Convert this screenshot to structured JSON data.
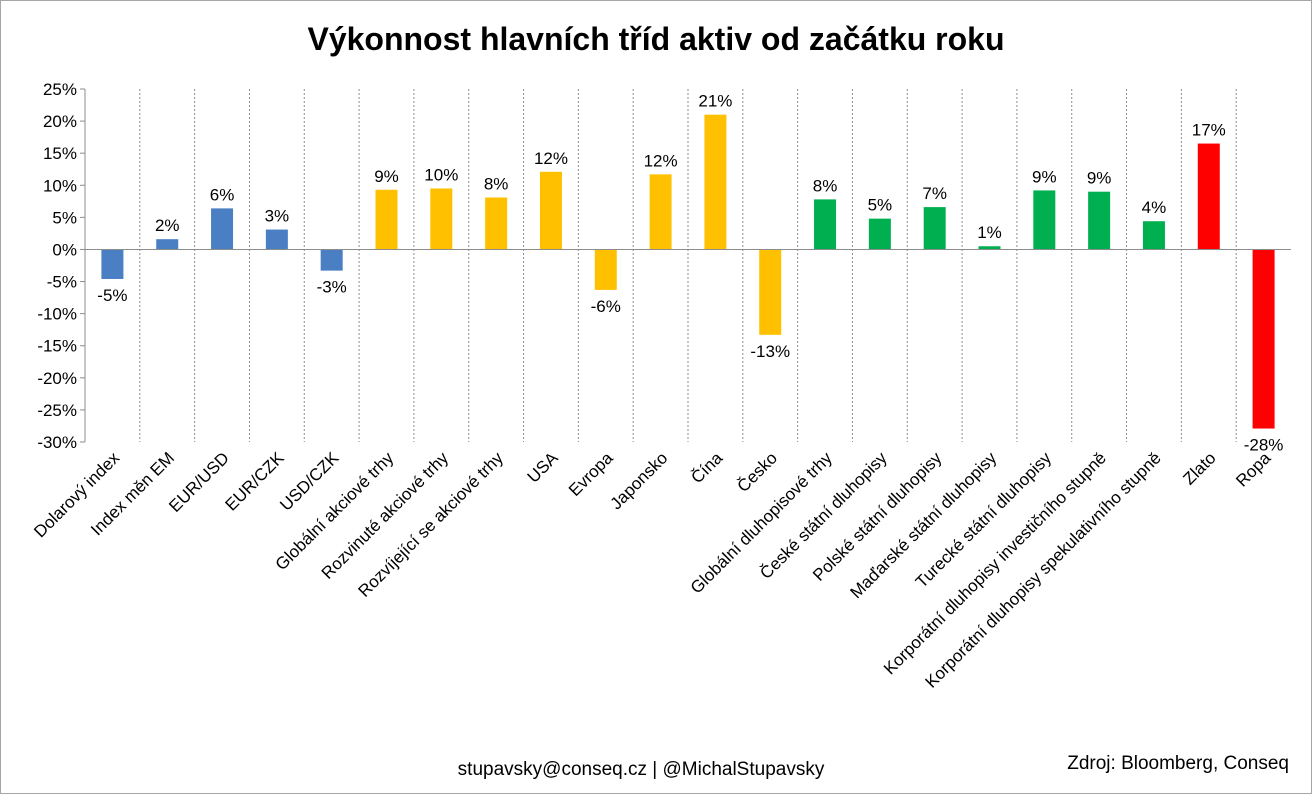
{
  "chart_data": {
    "type": "bar",
    "title": "Výkonnost hlavních tříd aktiv od začátku roku",
    "xlabel": "",
    "ylabel": "",
    "ylim": [
      -30,
      25
    ],
    "yticks": [
      "25%",
      "20%",
      "15%",
      "10%",
      "5%",
      "0%",
      "-5%",
      "-10%",
      "-15%",
      "-20%",
      "-25%",
      "-30%"
    ],
    "ytick_values": [
      25,
      20,
      15,
      10,
      5,
      0,
      -5,
      -10,
      -15,
      -20,
      -25,
      -30
    ],
    "grid": "vertical dashed category separators",
    "legend": "none",
    "categories": [
      "Dolarový index",
      "Index měn EM",
      "EUR/USD",
      "EUR/CZK",
      "USD/CZK",
      "Globální akciové trhy",
      "Rozvinuté akciové trhy",
      "Rozvíjející se akciové trhy",
      "USA",
      "Evropa",
      "Japonsko",
      "Čína",
      "Česko",
      "Globální dluhopisové trhy",
      "České státní dluhopisy",
      "Polské státní dluhopisy",
      "Maďarské státní dluhopisy",
      "Turecké státní dluhopisy",
      "Korporátní dluhopisy investičního stupně",
      "Korporátní dluhopisy spekulativního stupně",
      "Zlato",
      "Ropa"
    ],
    "values": [
      -4.6,
      1.6,
      6.4,
      3.1,
      -3.3,
      9.3,
      9.5,
      8.1,
      12.1,
      -6.3,
      11.7,
      21.0,
      -13.3,
      7.8,
      4.8,
      6.6,
      0.5,
      9.2,
      9.0,
      4.4,
      16.5,
      -27.9
    ],
    "labels": [
      "-5%",
      "2%",
      "6%",
      "3%",
      "-3%",
      "9%",
      "10%",
      "8%",
      "12%",
      "-6%",
      "12%",
      "21%",
      "-13%",
      "8%",
      "5%",
      "7%",
      "1%",
      "9%",
      "9%",
      "4%",
      "17%",
      "-28%"
    ],
    "colors": [
      "#4a7fc4",
      "#4a7fc4",
      "#4a7fc4",
      "#4a7fc4",
      "#4a7fc4",
      "#ffc000",
      "#ffc000",
      "#ffc000",
      "#ffc000",
      "#ffc000",
      "#ffc000",
      "#ffc000",
      "#ffc000",
      "#00b050",
      "#00b050",
      "#00b050",
      "#00b050",
      "#00b050",
      "#00b050",
      "#00b050",
      "#ff0000",
      "#ff0000"
    ]
  },
  "footer": {
    "contact": "stupavsky@conseq.cz  |  @MichalStupavsky",
    "source": "Zdroj: Bloomberg, Conseq"
  }
}
